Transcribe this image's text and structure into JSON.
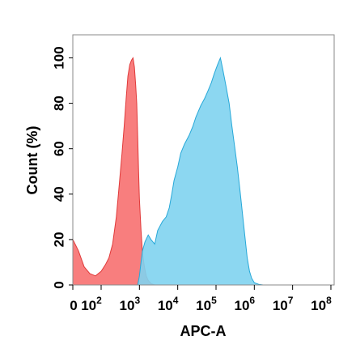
{
  "chart_data": {
    "type": "area",
    "title": "",
    "xlabel": "APC-A",
    "ylabel": "Count (%)",
    "x_scale": "log",
    "xlim": [
      0,
      100000000
    ],
    "ylim": [
      0,
      100
    ],
    "x_ticks": [
      {
        "base": "0",
        "exp": "",
        "value": 0
      },
      {
        "base": "10",
        "exp": "2",
        "value": 100
      },
      {
        "base": "10",
        "exp": "3",
        "value": 1000
      },
      {
        "base": "10",
        "exp": "4",
        "value": 10000
      },
      {
        "base": "10",
        "exp": "5",
        "value": 100000
      },
      {
        "base": "10",
        "exp": "6",
        "value": 1000000
      },
      {
        "base": "10",
        "exp": "7",
        "value": 10000000
      },
      {
        "base": "10",
        "exp": "8",
        "value": 100000000
      }
    ],
    "y_ticks": [
      "0",
      "20",
      "40",
      "60",
      "80",
      "100"
    ],
    "grid": false,
    "legend": "none",
    "series": [
      {
        "color": "#f87777",
        "stroke": "#e03a3a",
        "points": [
          [
            0,
            20
          ],
          [
            20,
            15
          ],
          [
            40,
            8
          ],
          [
            60,
            5
          ],
          [
            80,
            4
          ],
          [
            100,
            6
          ],
          [
            130,
            9
          ],
          [
            160,
            12
          ],
          [
            200,
            18
          ],
          [
            250,
            30
          ],
          [
            300,
            45
          ],
          [
            350,
            58
          ],
          [
            400,
            70
          ],
          [
            450,
            82
          ],
          [
            500,
            92
          ],
          [
            560,
            97
          ],
          [
            620,
            99
          ],
          [
            680,
            100
          ],
          [
            740,
            96
          ],
          [
            800,
            88
          ],
          [
            850,
            80
          ],
          [
            900,
            65
          ],
          [
            950,
            50
          ],
          [
            1000,
            38
          ],
          [
            1100,
            24
          ],
          [
            1200,
            14
          ],
          [
            1350,
            8
          ],
          [
            1500,
            4
          ],
          [
            1700,
            2
          ],
          [
            2000,
            0.6
          ],
          [
            2500,
            0
          ]
        ]
      },
      {
        "color": "#7fd3f0",
        "stroke": "#27a8d8",
        "points": [
          [
            900,
            0
          ],
          [
            1000,
            4
          ],
          [
            1100,
            10
          ],
          [
            1200,
            15
          ],
          [
            1400,
            19
          ],
          [
            1700,
            22
          ],
          [
            2000,
            20
          ],
          [
            2500,
            18
          ],
          [
            3000,
            24
          ],
          [
            4000,
            28
          ],
          [
            5000,
            30
          ],
          [
            6000,
            34
          ],
          [
            7000,
            40
          ],
          [
            8000,
            46
          ],
          [
            10000,
            52
          ],
          [
            12000,
            58
          ],
          [
            15000,
            62
          ],
          [
            20000,
            66
          ],
          [
            25000,
            70
          ],
          [
            30000,
            74
          ],
          [
            40000,
            79
          ],
          [
            50000,
            82
          ],
          [
            60000,
            85
          ],
          [
            75000,
            89
          ],
          [
            90000,
            93
          ],
          [
            110000,
            97
          ],
          [
            130000,
            100
          ],
          [
            150000,
            95
          ],
          [
            180000,
            88
          ],
          [
            220000,
            80
          ],
          [
            260000,
            70
          ],
          [
            300000,
            62
          ],
          [
            360000,
            52
          ],
          [
            420000,
            42
          ],
          [
            500000,
            30
          ],
          [
            580000,
            20
          ],
          [
            650000,
            12
          ],
          [
            750000,
            6
          ],
          [
            850000,
            3
          ],
          [
            1000000,
            1
          ],
          [
            1300000,
            0.3
          ],
          [
            1700000,
            0
          ]
        ]
      }
    ]
  }
}
